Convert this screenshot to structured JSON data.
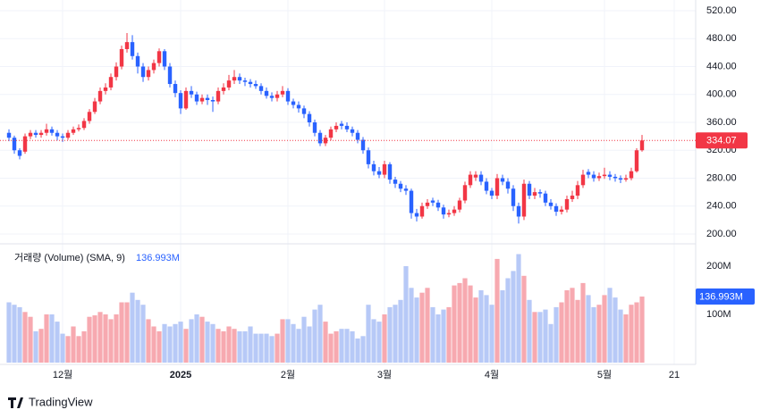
{
  "chart_data": {
    "type": "candlestick",
    "open": [
      345,
      338,
      320,
      318,
      340,
      345,
      342,
      345,
      350,
      345,
      340,
      338,
      345,
      350,
      352,
      362,
      375,
      390,
      405,
      410,
      425,
      440,
      465,
      475,
      455,
      440,
      425,
      435,
      445,
      462,
      440,
      415,
      402,
      380,
      405,
      400,
      390,
      395,
      392,
      390,
      405,
      410,
      420,
      425,
      420,
      418,
      415,
      412,
      405,
      398,
      395,
      400,
      405,
      390,
      385,
      380,
      372,
      360,
      345,
      330,
      338,
      350,
      358,
      355,
      350,
      345,
      335,
      320,
      300,
      290,
      285,
      300,
      278,
      272,
      265,
      262,
      230,
      225,
      240,
      248,
      245,
      238,
      228,
      230,
      235,
      248,
      270,
      281,
      285,
      275,
      262,
      255,
      280,
      275,
      265,
      240,
      225,
      272,
      255,
      260,
      258,
      245,
      240,
      232,
      235,
      250,
      255,
      270,
      289,
      285,
      280,
      283,
      285,
      282,
      280,
      278,
      280,
      290,
      320
    ],
    "high": [
      350,
      341,
      323,
      344,
      349,
      349,
      349,
      358,
      354,
      349,
      344,
      349,
      354,
      357,
      366,
      379,
      395,
      410,
      416,
      430,
      446,
      470,
      488,
      485,
      460,
      445,
      440,
      450,
      466,
      465,
      445,
      420,
      406,
      410,
      412,
      404,
      400,
      400,
      397,
      410,
      416,
      428,
      435,
      430,
      424,
      422,
      420,
      416,
      410,
      403,
      405,
      412,
      409,
      394,
      390,
      384,
      376,
      364,
      349,
      342,
      354,
      360,
      362,
      360,
      354,
      349,
      339,
      324,
      305,
      296,
      305,
      303,
      282,
      276,
      270,
      265,
      236,
      245,
      250,
      252,
      249,
      242,
      235,
      240,
      252,
      275,
      290,
      290,
      290,
      280,
      266,
      286,
      285,
      280,
      270,
      245,
      278,
      276,
      266,
      264,
      262,
      250,
      244,
      240,
      255,
      262,
      276,
      292,
      293,
      290,
      288,
      295,
      290,
      286,
      284,
      285,
      295,
      323,
      342
    ],
    "low": [
      333,
      315,
      307,
      315,
      336,
      338,
      338,
      341,
      341,
      334,
      332,
      335,
      342,
      347,
      349,
      358,
      372,
      386,
      400,
      406,
      420,
      436,
      460,
      450,
      430,
      418,
      420,
      430,
      440,
      435,
      410,
      396,
      372,
      378,
      395,
      385,
      386,
      385,
      375,
      386,
      400,
      406,
      415,
      415,
      412,
      410,
      408,
      400,
      394,
      390,
      390,
      396,
      385,
      380,
      374,
      366,
      354,
      340,
      326,
      326,
      334,
      346,
      350,
      346,
      340,
      330,
      315,
      294,
      284,
      280,
      280,
      272,
      266,
      260,
      256,
      222,
      218,
      222,
      236,
      240,
      233,
      222,
      224,
      226,
      231,
      244,
      266,
      276,
      270,
      257,
      250,
      250,
      270,
      258,
      233,
      215,
      220,
      250,
      250,
      252,
      240,
      235,
      226,
      228,
      231,
      246,
      250,
      266,
      280,
      275,
      276,
      279,
      277,
      275,
      273,
      275,
      277,
      288,
      318
    ],
    "close": [
      338,
      320,
      312,
      340,
      345,
      342,
      345,
      350,
      345,
      340,
      338,
      345,
      350,
      352,
      362,
      375,
      390,
      405,
      410,
      425,
      440,
      465,
      475,
      455,
      440,
      425,
      435,
      445,
      462,
      440,
      415,
      402,
      380,
      405,
      400,
      390,
      395,
      392,
      390,
      405,
      410,
      420,
      425,
      420,
      418,
      415,
      412,
      405,
      398,
      395,
      400,
      405,
      390,
      385,
      380,
      372,
      360,
      345,
      330,
      338,
      350,
      355,
      355,
      350,
      345,
      335,
      320,
      300,
      290,
      285,
      300,
      278,
      272,
      265,
      262,
      230,
      225,
      240,
      245,
      245,
      238,
      228,
      230,
      235,
      248,
      270,
      285,
      285,
      275,
      262,
      255,
      280,
      275,
      265,
      240,
      225,
      272,
      255,
      260,
      258,
      245,
      240,
      232,
      235,
      250,
      255,
      270,
      285,
      285,
      280,
      283,
      285,
      282,
      280,
      278,
      280,
      290,
      320,
      334.07
    ],
    "volume": [
      125,
      120,
      115,
      105,
      95,
      65,
      70,
      100,
      100,
      85,
      60,
      55,
      75,
      55,
      65,
      95,
      98,
      105,
      100,
      90,
      100,
      125,
      125,
      145,
      130,
      120,
      90,
      75,
      65,
      80,
      75,
      80,
      85,
      70,
      90,
      100,
      95,
      85,
      80,
      70,
      65,
      75,
      70,
      65,
      65,
      75,
      60,
      60,
      60,
      55,
      60,
      90,
      90,
      80,
      70,
      95,
      75,
      110,
      120,
      85,
      60,
      65,
      70,
      70,
      65,
      50,
      55,
      120,
      90,
      85,
      100,
      115,
      120,
      130,
      200,
      155,
      135,
      145,
      155,
      115,
      100,
      110,
      115,
      160,
      165,
      175,
      160,
      135,
      150,
      140,
      120,
      215,
      150,
      175,
      190,
      225,
      180,
      130,
      105,
      105,
      110,
      80,
      115,
      125,
      150,
      155,
      130,
      165,
      140,
      115,
      120,
      140,
      155,
      135,
      110,
      100,
      120,
      125,
      136.993
    ],
    "volume_label": "136.993M",
    "volume_title": "거래량 (Volume) (SMA, 9)",
    "up_color": "#f23645",
    "down_color": "#2962ff",
    "up_volume_color": "#f7a9b0",
    "down_volume_color": "#b7c9f7",
    "xlim": [
      -1.67,
      128
    ],
    "xticks": [
      {
        "value": 10,
        "label": "12월"
      },
      {
        "value": 32,
        "label": "2025"
      },
      {
        "value": 52,
        "label": "2월"
      },
      {
        "value": 70,
        "label": "3월"
      },
      {
        "value": 90,
        "label": "4월"
      },
      {
        "value": 111,
        "label": "5월"
      },
      {
        "value": 124,
        "label": "21"
      }
    ],
    "ylim": [
      200,
      520
    ],
    "yticks": [
      {
        "value": 200,
        "label": "200.00"
      },
      {
        "value": 240,
        "label": "240.00"
      },
      {
        "value": 280,
        "label": "280.00"
      },
      {
        "value": 320,
        "label": "320.00"
      },
      {
        "value": 360,
        "label": "360.00"
      },
      {
        "value": 400,
        "label": "400.00"
      },
      {
        "value": 440,
        "label": "440.00"
      },
      {
        "value": 480,
        "label": "480.00"
      },
      {
        "value": 520,
        "label": "520.00"
      }
    ],
    "y2lim": [
      0,
      250
    ],
    "y2ticks": [
      {
        "value": 100,
        "label": "100M"
      },
      {
        "value": 200,
        "label": "200M"
      }
    ],
    "grid": true,
    "brand": "TradingView"
  }
}
